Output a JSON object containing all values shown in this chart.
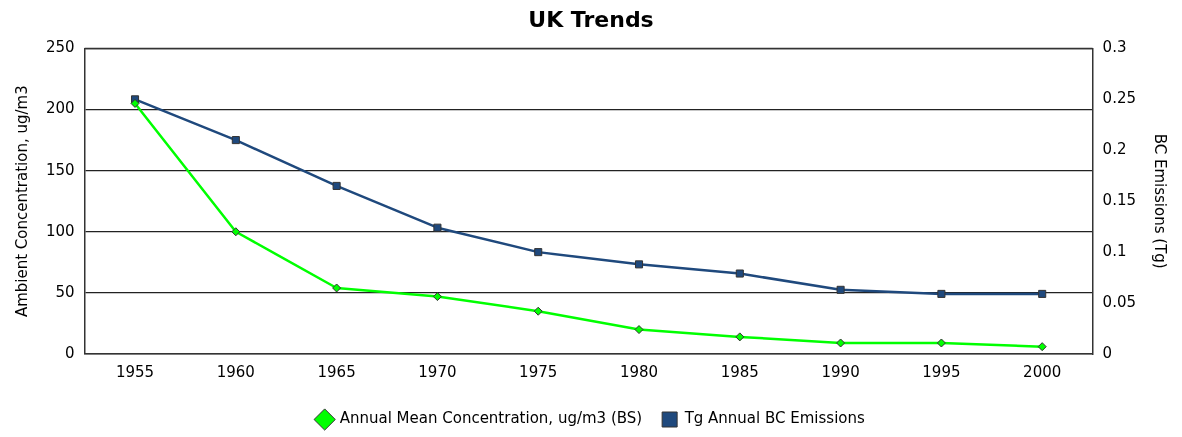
{
  "chart_data": {
    "type": "line",
    "title": "UK Trends",
    "ylabel": "Ambient Concentration, ug/m3",
    "y2label": "BC Emissions (Tg)",
    "categories": [
      "1955",
      "1960",
      "1965",
      "1970",
      "1975",
      "1980",
      "1985",
      "1990",
      "1995",
      "2000"
    ],
    "series": [
      {
        "name": "Tg Annual BC Emissions",
        "color": "#1f497d",
        "axis": "y2",
        "marker": "square",
        "values": [
          0.25,
          0.21,
          0.165,
          0.124,
          0.1,
          0.088,
          0.079,
          0.063,
          0.059,
          0.059
        ]
      },
      {
        "name": "Annual Mean Concentration, ug/m3 (BS)",
        "color": "#00ff00",
        "marker": "diamond",
        "values": [
          205,
          100,
          54,
          47,
          35,
          20,
          14,
          9,
          9,
          6
        ]
      }
    ],
    "ylim": [
      0,
      250
    ],
    "yticks": [
      0,
      50,
      100,
      150,
      200,
      250
    ],
    "y2lim": [
      0,
      0.3
    ],
    "y2ticks": [
      0,
      0.05,
      0.1,
      0.15,
      0.2,
      0.25,
      0.3
    ],
    "grid": "y",
    "legend": "bottom",
    "line_style": "solid"
  }
}
